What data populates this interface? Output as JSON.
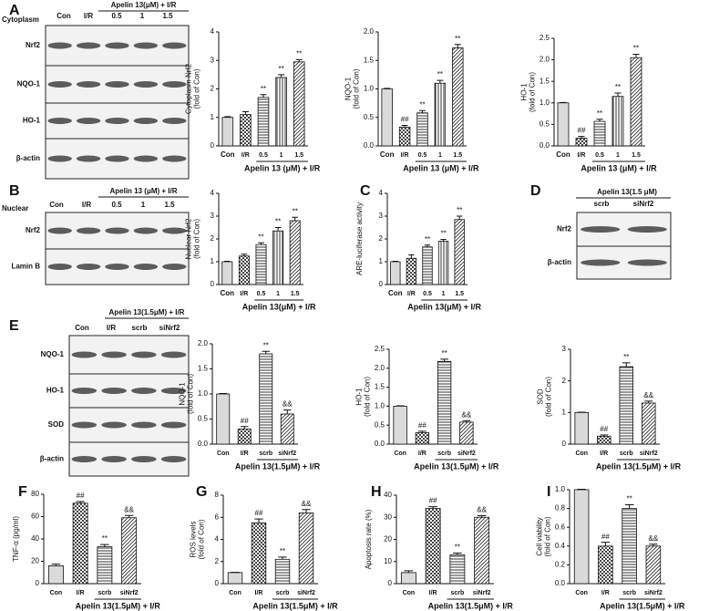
{
  "panels": [
    "A",
    "B",
    "C",
    "D",
    "E",
    "F",
    "G",
    "H",
    "I"
  ],
  "blots": [
    {
      "side_label": "Cytoplasm",
      "header": "Apelin 13(μM) + I/R",
      "lanes": [
        "Con",
        "I/R",
        "0.5",
        "1",
        "1.5"
      ],
      "rows": [
        "Nrf2",
        "NQO-1",
        "HO-1",
        "β-actin"
      ]
    },
    {
      "side_label": "Nuclear",
      "header": "Apelin 13 (μM) + I/R",
      "lanes": [
        "Con",
        "I/R",
        "0.5",
        "1",
        "1.5"
      ],
      "rows": [
        "Nrf2",
        "Lamin B"
      ]
    },
    {
      "header": "Apelin 13(1.5 μM)",
      "lanes": [
        "scrb",
        "siNrf2"
      ],
      "rows": [
        "Nrf2",
        "β-actin"
      ]
    },
    {
      "header": "Apelin 13(1.5μM) + I/R",
      "lanes": [
        "Con",
        "I/R",
        "scrb",
        "siNrf2"
      ],
      "rows": [
        "NQO-1",
        "HO-1",
        "SOD",
        "β-actin"
      ]
    }
  ],
  "chart_data": [
    {
      "type": "bar",
      "ylabel": [
        "Cytoplasm Nrf2",
        "(fold of Con)"
      ],
      "categories": [
        "Con",
        "I/R",
        "0.5",
        "1",
        "1.5"
      ],
      "group_label": "Apelin 13 (μM) + I/R",
      "values": [
        1.0,
        1.1,
        1.7,
        2.4,
        2.95
      ],
      "errors": [
        0.03,
        0.1,
        0.1,
        0.1,
        0.08
      ],
      "annotations": [
        null,
        null,
        "**",
        "**",
        "**"
      ],
      "ylim": [
        0,
        4
      ],
      "yticks": [
        0,
        1,
        2,
        3,
        4
      ]
    },
    {
      "type": "bar",
      "ylabel": [
        "NQO-1",
        "(fold of Con)"
      ],
      "categories": [
        "Con",
        "I/R",
        "0.5",
        "1",
        "1.5"
      ],
      "group_label": "Apelin 13 (μM) + I/R",
      "values": [
        1.0,
        0.33,
        0.58,
        1.1,
        1.72
      ],
      "errors": [
        0.01,
        0.03,
        0.04,
        0.05,
        0.06
      ],
      "annotations": [
        null,
        "##",
        "**",
        "**",
        "**"
      ],
      "ylim": [
        0,
        2
      ],
      "yticks": [
        {
          "value": 0,
          "label": "0.0"
        },
        0.5,
        {
          "value": 1,
          "label": "1.0"
        },
        1.5,
        {
          "value": 2,
          "label": "2.0"
        }
      ]
    },
    {
      "type": "bar",
      "ylabel": [
        "HO-1",
        "(fold of Con)"
      ],
      "categories": [
        "Con",
        "I/R",
        "0.5",
        "1",
        "1.5"
      ],
      "group_label": "Apelin 13 (μM) + I/R",
      "values": [
        1.0,
        0.18,
        0.57,
        1.15,
        2.05
      ],
      "errors": [
        0.01,
        0.04,
        0.05,
        0.08,
        0.08
      ],
      "annotations": [
        null,
        "##",
        "**",
        "**",
        "**"
      ],
      "ylim": [
        0,
        2.5
      ],
      "yticks": [
        {
          "value": 0,
          "label": "0.0"
        },
        0.5,
        {
          "value": 1,
          "label": "1.0"
        },
        1.5,
        {
          "value": 2,
          "label": "2.0"
        },
        2.5
      ]
    },
    {
      "type": "bar",
      "ylabel": [
        "Nuclear Nrf2",
        "(fold of Con)"
      ],
      "categories": [
        "Con",
        "I/R",
        "0.5",
        "1",
        "1.5"
      ],
      "group_label": "Apelin 13(μM) + I/R",
      "values": [
        1.0,
        1.25,
        1.75,
        2.35,
        2.8
      ],
      "errors": [
        0.02,
        0.08,
        0.08,
        0.15,
        0.15
      ],
      "annotations": [
        null,
        null,
        "**",
        "**",
        "**"
      ],
      "ylim": [
        0,
        4
      ],
      "yticks": [
        0,
        1,
        2,
        3,
        4
      ]
    },
    {
      "type": "bar",
      "ylabel": [
        "ARE-luciferase activity"
      ],
      "categories": [
        "Con",
        "I/R",
        "0.5",
        "1",
        "1.5"
      ],
      "group_label": "Apelin 13(μM) + I/R",
      "values": [
        1.0,
        1.15,
        1.65,
        1.9,
        2.85
      ],
      "errors": [
        0.02,
        0.15,
        0.08,
        0.08,
        0.15
      ],
      "annotations": [
        null,
        null,
        "**",
        "**",
        "**"
      ],
      "ylim": [
        0,
        4
      ],
      "yticks": [
        0,
        1,
        2,
        3,
        4
      ]
    },
    {
      "type": "bar",
      "ylabel": [
        "NQO-1",
        "(fold of Con)"
      ],
      "categories": [
        "Con",
        "I/R",
        "scrb",
        "siNrf2"
      ],
      "group_label": "Apelin 13(1.5μM) + I/R",
      "values": [
        1.0,
        0.3,
        1.8,
        0.6
      ],
      "errors": [
        0.01,
        0.05,
        0.05,
        0.08
      ],
      "annotations": [
        null,
        "##",
        "**",
        "&&"
      ],
      "ylim": [
        0,
        2
      ],
      "yticks": [
        {
          "value": 0,
          "label": "0.0"
        },
        0.5,
        {
          "value": 1,
          "label": "1.0"
        },
        1.5,
        {
          "value": 2,
          "label": "2.0"
        }
      ]
    },
    {
      "type": "bar",
      "ylabel": [
        "HO-1",
        "(fold of Con)"
      ],
      "categories": [
        "Con",
        "I/R",
        "scrb",
        "siNrf2"
      ],
      "group_label": "Apelin 13(1.5μM) + I/R",
      "values": [
        1.0,
        0.3,
        2.18,
        0.58
      ],
      "errors": [
        0.01,
        0.04,
        0.06,
        0.04
      ],
      "annotations": [
        null,
        "##",
        "**",
        "&&"
      ],
      "ylim": [
        0,
        2.5
      ],
      "yticks": [
        {
          "value": 0,
          "label": "0.0"
        },
        0.5,
        {
          "value": 1,
          "label": "1.0"
        },
        1.5,
        {
          "value": 2,
          "label": "2.0"
        },
        2.5
      ]
    },
    {
      "type": "bar",
      "ylabel": [
        "SOD",
        "(fold of Con)"
      ],
      "categories": [
        "Con",
        "I/R",
        "scrb",
        "siNrf2"
      ],
      "group_label": "Apelin 13(1.5μM) + I/R",
      "values": [
        1.0,
        0.25,
        2.45,
        1.3
      ],
      "errors": [
        0.01,
        0.04,
        0.12,
        0.06
      ],
      "annotations": [
        null,
        "##",
        "**",
        "&&"
      ],
      "ylim": [
        0,
        3
      ],
      "yticks": [
        0,
        1,
        2,
        3
      ]
    },
    {
      "type": "bar",
      "ylabel": [
        "TNF-α (pg/ml)"
      ],
      "categories": [
        "Con",
        "I/R",
        "scrb",
        "siNrf2"
      ],
      "group_label": "Apelin 13(1.5μM) + I/R",
      "values": [
        16,
        72,
        33,
        59
      ],
      "errors": [
        1.5,
        1.5,
        2,
        2
      ],
      "annotations": [
        null,
        "##",
        "**",
        "&&"
      ],
      "ylim": [
        0,
        80
      ],
      "yticks": [
        0,
        20,
        40,
        60,
        80
      ]
    },
    {
      "type": "bar",
      "ylabel": [
        "ROS levels",
        "(fold of Con)"
      ],
      "categories": [
        "Con",
        "I/R",
        "scrb",
        "siNrf2"
      ],
      "group_label": "Apelin 13(1.5μM) + I/R",
      "values": [
        1.0,
        5.5,
        2.2,
        6.4
      ],
      "errors": [
        0.02,
        0.35,
        0.2,
        0.3
      ],
      "annotations": [
        null,
        "##",
        "**",
        "&&"
      ],
      "ylim": [
        0,
        8
      ],
      "yticks": [
        0,
        2,
        4,
        6,
        8
      ]
    },
    {
      "type": "bar",
      "ylabel": [
        "Apoptosis rate (%)"
      ],
      "categories": [
        "Con",
        "I/R",
        "scrb",
        "siNrf2"
      ],
      "group_label": "Apelin 13(1.5μM) + I/R",
      "values": [
        5,
        34,
        13,
        30
      ],
      "errors": [
        0.8,
        0.8,
        0.8,
        0.7
      ],
      "annotations": [
        null,
        "##",
        "**",
        "&&"
      ],
      "ylim": [
        0,
        40
      ],
      "yticks": [
        0,
        10,
        20,
        30,
        40
      ]
    },
    {
      "type": "bar",
      "ylabel": [
        "Cell viability",
        "(fold of Con)"
      ],
      "categories": [
        "Con",
        "I/R",
        "scrb",
        "siNrf2"
      ],
      "group_label": "Apelin 13(1.5μM) + I/R",
      "values": [
        1.0,
        0.4,
        0.8,
        0.4
      ],
      "errors": [
        0.005,
        0.04,
        0.04,
        0.02
      ],
      "annotations": [
        null,
        "##",
        "**",
        "&&"
      ],
      "ylim": [
        0,
        1
      ],
      "yticks": [
        {
          "value": 0,
          "label": "0.0"
        },
        0.2,
        0.4,
        0.6,
        0.8,
        {
          "value": 1,
          "label": "1.0"
        }
      ]
    }
  ]
}
